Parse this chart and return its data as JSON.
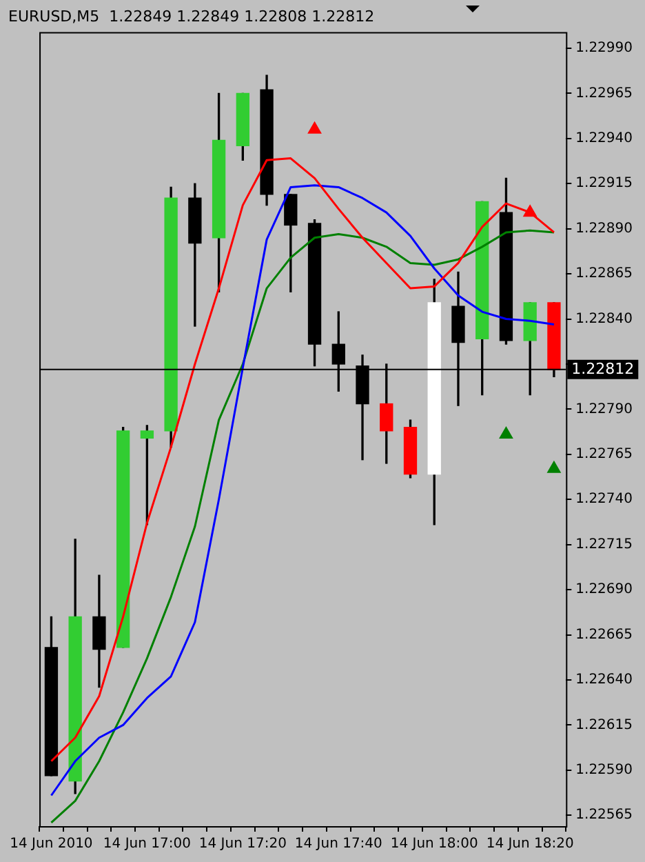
{
  "chart_data": {
    "type": "candlestick",
    "title": "EURUSD,M5  1.22849 1.22849 1.22808 1.22812",
    "categories": [
      "14 Jun 2010",
      null,
      null,
      null,
      "14 Jun 17:00",
      null,
      null,
      null,
      "14 Jun 17:20",
      null,
      null,
      null,
      "14 Jun 17:40",
      null,
      null,
      null,
      "14 Jun 18:00",
      null,
      null,
      null,
      "14 Jun 18:20",
      null
    ],
    "ohlc": [
      [
        1.22658,
        1.22675,
        1.22587,
        1.22587
      ],
      [
        1.22584,
        1.22718,
        1.22577,
        1.22675
      ],
      [
        1.22675,
        1.22698,
        1.22636,
        1.22657
      ],
      [
        1.22658,
        1.2278,
        1.22658,
        1.22778
      ],
      [
        1.22774,
        1.22781,
        1.22726,
        1.22778
      ],
      [
        1.22778,
        1.22913,
        1.22769,
        1.22907
      ],
      [
        1.22907,
        1.22915,
        1.22836,
        1.22882
      ],
      [
        1.22885,
        1.22965,
        1.22855,
        1.22939
      ],
      [
        1.22936,
        1.22965,
        1.22928,
        1.22965
      ],
      [
        1.22967,
        1.22975,
        1.22903,
        1.22909
      ],
      [
        1.22909,
        1.22909,
        1.22855,
        1.22892
      ],
      [
        1.22893,
        1.22895,
        1.22814,
        1.22826
      ],
      [
        1.22826,
        1.22844,
        1.228,
        1.22815
      ],
      [
        1.22814,
        1.2282,
        1.22762,
        1.22793
      ],
      [
        1.22793,
        1.22815,
        1.2276,
        1.22778
      ],
      [
        1.2278,
        1.22784,
        1.22752,
        1.22754
      ],
      [
        1.22754,
        1.22862,
        1.22726,
        1.22849
      ],
      [
        1.22847,
        1.22866,
        1.22792,
        1.22827
      ],
      [
        1.22829,
        1.22905,
        1.22798,
        1.22905
      ],
      [
        1.22899,
        1.22918,
        1.22826,
        1.22828
      ],
      [
        1.22828,
        1.22849,
        1.22798,
        1.22849
      ],
      [
        1.22849,
        1.22849,
        1.22808,
        1.22812
      ]
    ],
    "colors": [
      "#000000",
      "#32cd32",
      "#000000",
      "#32cd32",
      "#32cd32",
      "#32cd32",
      "#000000",
      "#32cd32",
      "#32cd32",
      "#000000",
      "#000000",
      "#000000",
      "#000000",
      "#000000",
      "#ff0000",
      "#ff0000",
      "#ffffff",
      "#000000",
      "#32cd32",
      "#000000",
      "#32cd32",
      "#ff0000"
    ],
    "series": [
      {
        "type": "line",
        "color": "#ff0000",
        "values": [
          1.22595,
          1.22608,
          1.22631,
          1.22675,
          1.22727,
          1.22769,
          1.22815,
          1.22857,
          1.22903,
          1.22928,
          1.22929,
          1.22918,
          1.22901,
          1.22885,
          1.22871,
          1.22857,
          1.22858,
          1.22871,
          1.22891,
          1.22904,
          1.22899,
          1.22888
        ]
      },
      {
        "type": "line",
        "color": "#0000ff",
        "values": [
          1.22576,
          1.22595,
          1.22608,
          1.22615,
          1.2263,
          1.22642,
          1.22672,
          1.2274,
          1.22813,
          1.22884,
          1.22913,
          1.22914,
          1.22913,
          1.22907,
          1.22899,
          1.22886,
          1.22868,
          1.22853,
          1.22844,
          1.2284,
          1.22839,
          1.22837
        ]
      },
      {
        "type": "line",
        "color": "#008000",
        "values": [
          1.22561,
          1.22573,
          1.22595,
          1.22622,
          1.22652,
          1.22686,
          1.22725,
          1.22784,
          1.22815,
          1.22857,
          1.22874,
          1.22885,
          1.22887,
          1.22885,
          1.2288,
          1.22871,
          1.2287,
          1.22873,
          1.2288,
          1.22888,
          1.22889,
          1.22888
        ]
      },
      {
        "type": "scatter",
        "color": "#ff0000",
        "marker": "triangle",
        "values": [
          null,
          null,
          null,
          null,
          null,
          null,
          null,
          null,
          null,
          null,
          null,
          1.22945,
          null,
          null,
          null,
          null,
          null,
          null,
          null,
          null,
          1.22899,
          null
        ]
      },
      {
        "type": "scatter",
        "color": "#008000",
        "marker": "triangle",
        "values": [
          null,
          null,
          null,
          null,
          null,
          null,
          null,
          null,
          null,
          null,
          null,
          null,
          null,
          null,
          null,
          null,
          null,
          null,
          null,
          1.22776,
          null,
          1.22757
        ]
      }
    ],
    "ylim": [
      1.22559,
      1.22999
    ],
    "yticks": [
      1.22565,
      {
        "value": 1.2259,
        "label": "1.22590"
      },
      1.22615,
      {
        "value": 1.2264,
        "label": "1.22640"
      },
      1.22665,
      {
        "value": 1.2269,
        "label": "1.22690"
      },
      1.22715,
      {
        "value": 1.2274,
        "label": "1.22740"
      },
      1.22765,
      {
        "value": 1.2279,
        "label": "1.22790"
      },
      {
        "value": 1.22815,
        "label": null
      },
      {
        "value": 1.2284,
        "label": "1.22840"
      },
      1.22865,
      {
        "value": 1.2289,
        "label": "1.22890"
      },
      1.22915,
      {
        "value": 1.2294,
        "label": "1.22940"
      },
      1.22965,
      {
        "value": 1.2299,
        "label": "1.22990"
      }
    ],
    "ref_lines": [
      {
        "axis": "y",
        "value": 1.22812,
        "label": "1.22812",
        "color": "#000000"
      }
    ],
    "grid": false,
    "legend": false,
    "marker": "none"
  }
}
